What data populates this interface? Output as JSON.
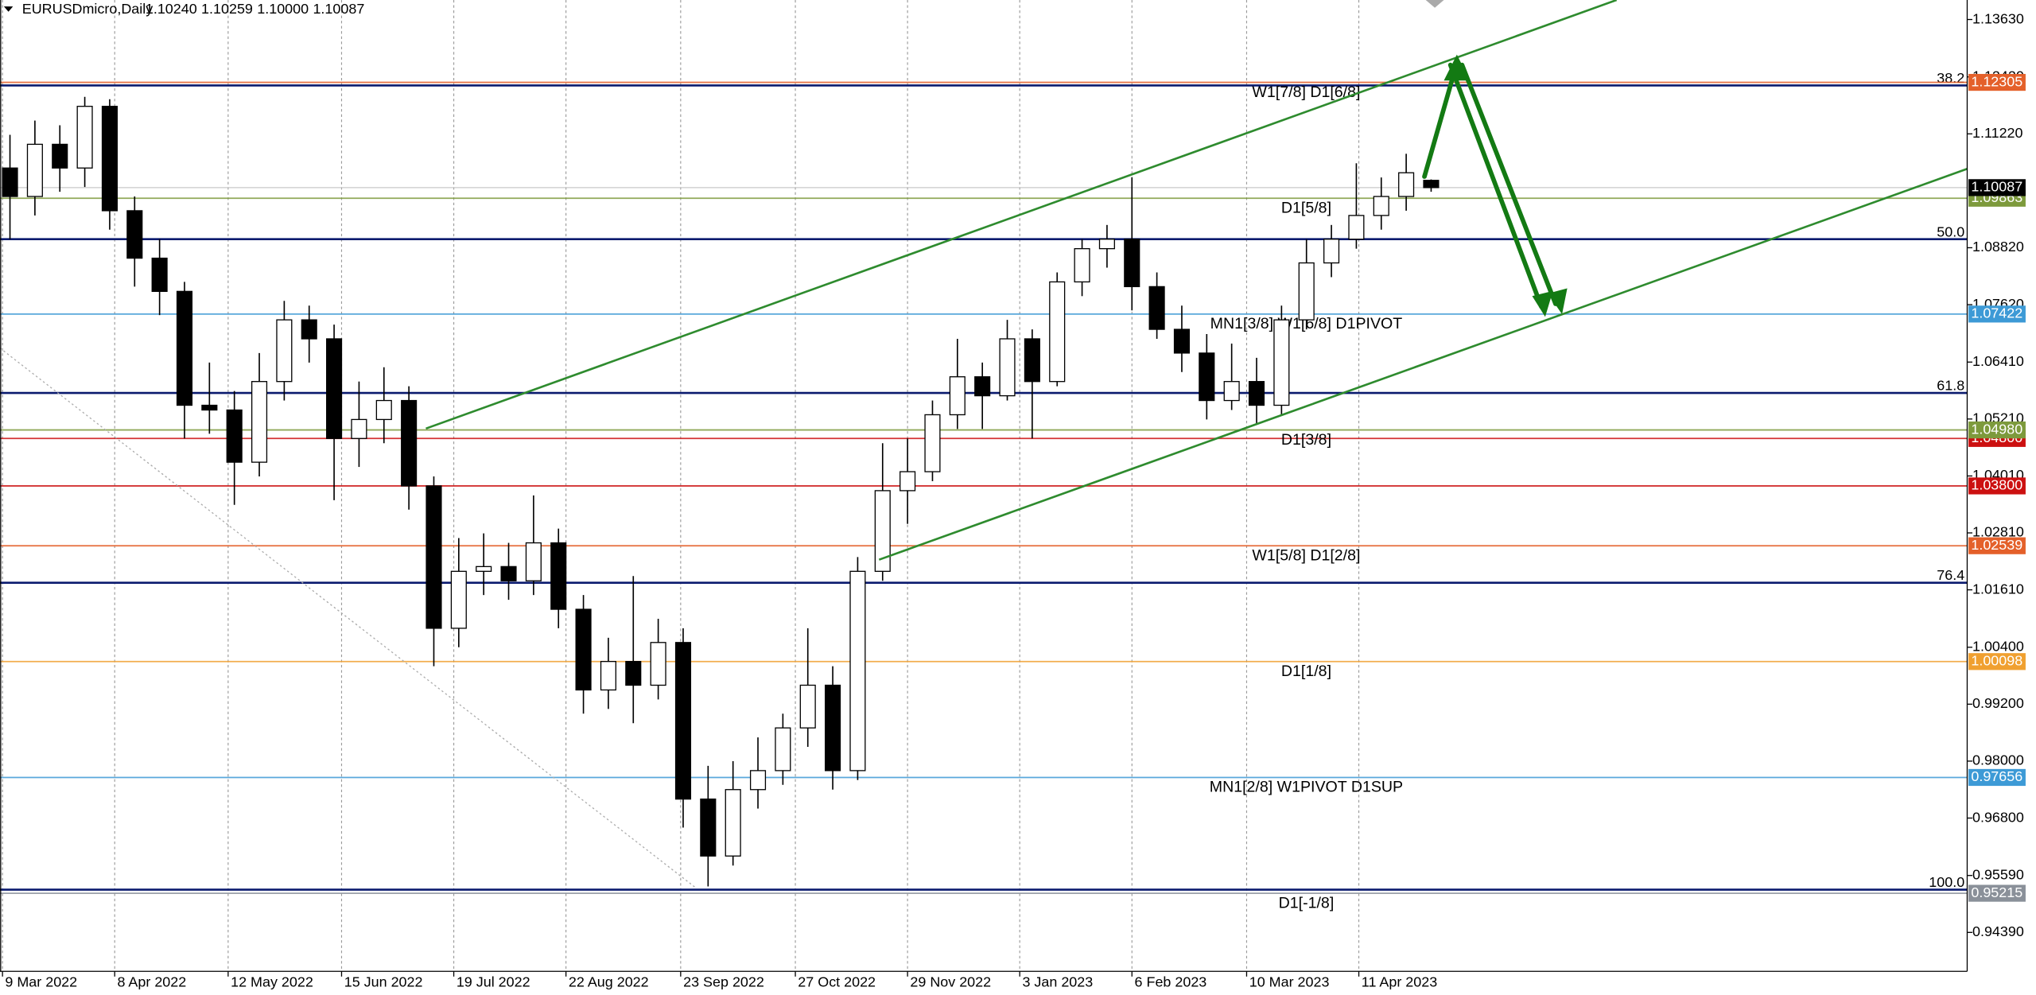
{
  "header": {
    "title": "EURUSDmicro,Daily",
    "ohlc": [
      "1.10240",
      "1.10259",
      "1.10000",
      "1.10087"
    ]
  },
  "chart_data": {
    "type": "candlestick",
    "open": [
      1.105,
      1.099,
      1.11,
      1.105,
      1.118,
      1.096,
      1.086,
      1.079,
      1.055,
      1.054,
      1.043,
      1.06,
      1.073,
      1.069,
      1.048,
      1.052,
      1.056,
      1.038,
      1.008,
      1.02,
      1.021,
      1.018,
      1.026,
      1.012,
      0.995,
      1.001,
      0.996,
      1.005,
      0.972,
      0.96,
      0.974,
      0.978,
      0.987,
      0.996,
      0.978,
      1.02,
      1.037,
      1.041,
      1.053,
      1.061,
      1.057,
      1.069,
      1.06,
      1.081,
      1.088,
      1.09,
      1.08,
      1.071,
      1.066,
      1.056,
      1.06,
      1.055,
      1.073,
      1.085,
      1.09,
      1.095,
      1.099,
      1.1024
    ],
    "high": [
      1.112,
      1.115,
      1.114,
      1.12,
      1.1195,
      1.099,
      1.09,
      1.081,
      1.064,
      1.058,
      1.066,
      1.077,
      1.076,
      1.072,
      1.06,
      1.063,
      1.059,
      1.04,
      1.027,
      1.028,
      1.026,
      1.036,
      1.029,
      1.015,
      1.006,
      1.019,
      1.01,
      1.008,
      0.979,
      0.98,
      0.985,
      0.99,
      1.008,
      1.0,
      1.023,
      1.047,
      1.048,
      1.056,
      1.069,
      1.064,
      1.073,
      1.071,
      1.083,
      1.09,
      1.093,
      1.103,
      1.083,
      1.076,
      1.07,
      1.068,
      1.065,
      1.076,
      1.09,
      1.093,
      1.106,
      1.103,
      1.108,
      1.10259
    ],
    "low": [
      1.09,
      1.095,
      1.1,
      1.101,
      1.092,
      1.08,
      1.074,
      1.048,
      1.049,
      1.034,
      1.04,
      1.056,
      1.064,
      1.035,
      1.042,
      1.047,
      1.033,
      1.0,
      1.004,
      1.015,
      1.014,
      1.015,
      1.008,
      0.99,
      0.991,
      0.988,
      0.993,
      0.966,
      0.9536,
      0.958,
      0.97,
      0.975,
      0.983,
      0.974,
      0.976,
      1.018,
      1.03,
      1.039,
      1.05,
      1.05,
      1.056,
      1.048,
      1.059,
      1.078,
      1.084,
      1.075,
      1.069,
      1.062,
      1.052,
      1.054,
      1.051,
      1.053,
      1.071,
      1.082,
      1.088,
      1.092,
      1.096,
      1.1
    ],
    "close": [
      1.099,
      1.11,
      1.105,
      1.118,
      1.096,
      1.086,
      1.079,
      1.055,
      1.054,
      1.043,
      1.06,
      1.073,
      1.069,
      1.048,
      1.052,
      1.056,
      1.038,
      1.008,
      1.02,
      1.021,
      1.018,
      1.026,
      1.012,
      0.995,
      1.001,
      0.996,
      1.005,
      0.972,
      0.96,
      0.974,
      0.978,
      0.987,
      0.996,
      0.978,
      1.02,
      1.037,
      1.041,
      1.053,
      1.061,
      1.057,
      1.069,
      1.06,
      1.081,
      1.088,
      1.09,
      1.08,
      1.071,
      1.066,
      1.056,
      1.06,
      1.055,
      1.073,
      1.085,
      1.09,
      1.095,
      1.099,
      1.104,
      1.10087
    ],
    "bull_color": "#ffffff",
    "bear_color": "#000000",
    "outline_color": "#000000",
    "xlim": [
      -0.4,
      78.5
    ],
    "ylim": [
      0.93569,
      1.14041
    ],
    "grid": true,
    "xticks": [
      {
        "value": -0.3,
        "label": "9 Mar 2022"
      },
      {
        "value": 4.2,
        "label": "8 Apr 2022"
      },
      {
        "value": 8.75,
        "label": "12 May 2022"
      },
      {
        "value": 13.3,
        "label": "15 Jun 2022"
      },
      {
        "value": 17.8,
        "label": "19 Jul 2022"
      },
      {
        "value": 22.3,
        "label": "22 Aug 2022"
      },
      {
        "value": 26.9,
        "label": "23 Sep 2022"
      },
      {
        "value": 31.5,
        "label": "27 Oct 2022"
      },
      {
        "value": 36.0,
        "label": "29 Nov 2022"
      },
      {
        "value": 40.5,
        "label": "3 Jan 2023"
      },
      {
        "value": 45.0,
        "label": "6 Feb 2023"
      },
      {
        "value": 49.6,
        "label": "10 Mar 2023"
      },
      {
        "value": 54.1,
        "label": "11 Apr 2023"
      }
    ],
    "yticks": [
      {
        "value": 1.1363,
        "label": "1.13630"
      },
      {
        "value": 1.1242,
        "label": "1.12420"
      },
      {
        "value": 1.1122,
        "label": "1.11220"
      },
      {
        "value": 1.0882,
        "label": "1.08820"
      },
      {
        "value": 1.0762,
        "label": "1.07620"
      },
      {
        "value": 1.0641,
        "label": "1.06410"
      },
      {
        "value": 1.0521,
        "label": "1.05210"
      },
      {
        "value": 1.0401,
        "label": "1.04010"
      },
      {
        "value": 1.0281,
        "label": "1.02810"
      },
      {
        "value": 1.0161,
        "label": "1.01610"
      },
      {
        "value": 1.004,
        "label": "1.00400"
      },
      {
        "value": 0.992,
        "label": "0.99200"
      },
      {
        "value": 0.98,
        "label": "0.98000"
      },
      {
        "value": 0.968,
        "label": "0.96800"
      },
      {
        "value": 0.9559,
        "label": "0.95590"
      },
      {
        "value": 0.9439,
        "label": "0.94390"
      }
    ],
    "fib_levels": [
      {
        "label": "38.2",
        "price": 1.1224
      },
      {
        "label": "50.0",
        "price": 1.09
      },
      {
        "label": "61.8",
        "price": 1.0576
      },
      {
        "label": "76.4",
        "price": 1.0176
      },
      {
        "label": "100.0",
        "price": 0.9529
      }
    ],
    "fib_color": "#0a1a6e",
    "levels": [
      {
        "label": "W1[7/8] D1[6/8]",
        "price": {
          "value": 1.12305,
          "label": "1.12305"
        },
        "color": "#e4602a"
      },
      {
        "label": "D1[5/8]",
        "price": {
          "value": 1.09863,
          "label": "1.09863"
        },
        "color": "#7d9a3c"
      },
      {
        "label": "MN1[3/8] W1[6/8] D1PIVOT",
        "price": {
          "value": 1.07422,
          "label": "1.07422"
        },
        "color": "#3d9ad6"
      },
      {
        "price": {
          "value": 1.048,
          "label": "1.04800"
        },
        "color": "#cc1010"
      },
      {
        "label": "D1[3/8]",
        "price": {
          "value": 1.0498,
          "label": "1.04980"
        },
        "color": "#7d9a3c"
      },
      {
        "price": {
          "value": 1.038,
          "label": "1.03800"
        },
        "color": "#cc1010"
      },
      {
        "label": "W1[5/8] D1[2/8]",
        "price": {
          "value": 1.02539,
          "label": "1.02539"
        },
        "color": "#e4602a"
      },
      {
        "label": "D1[1/8]",
        "price": {
          "value": 1.00098,
          "label": "1.00098"
        },
        "color": "#f0a030"
      },
      {
        "label": "MN1[2/8] W1PIVOT D1SUP",
        "price": {
          "value": 0.97656,
          "label": "0.97656"
        },
        "color": "#3d9ad6"
      },
      {
        "label": "D1[-1/8]",
        "price": {
          "value": 0.95215,
          "label": "0.95215"
        },
        "color": "#8a9099"
      }
    ],
    "last_price": {
      "value": 1.10087,
      "label": "1.10087"
    }
  }
}
